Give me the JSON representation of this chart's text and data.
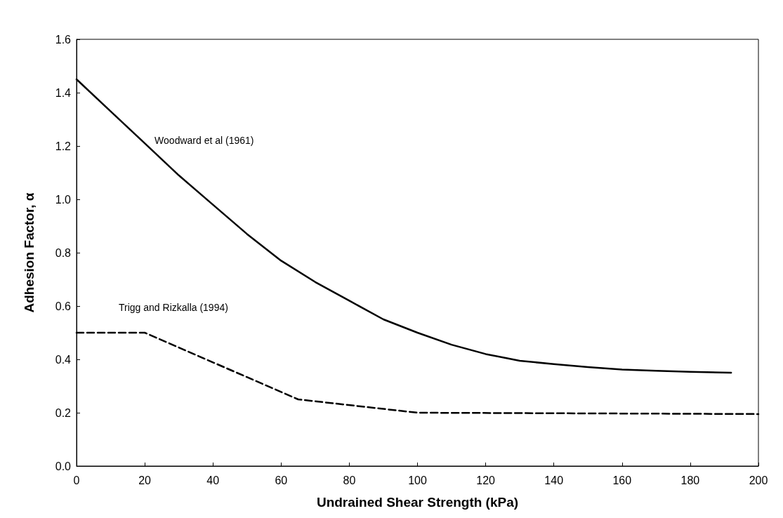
{
  "chart_data": {
    "type": "line",
    "xlabel": "Undrained Shear Strength (kPa)",
    "ylabel": "Adhesion Factor, α",
    "xlim": [
      0,
      200
    ],
    "xticks": [
      0,
      20,
      40,
      60,
      80,
      100,
      120,
      140,
      160,
      180,
      200
    ],
    "ylim": [
      0,
      1.6
    ],
    "yticks": [
      {
        "value": 0,
        "label": "0.0"
      },
      0.2,
      0.4,
      0.6,
      0.8,
      {
        "value": 1,
        "label": "1.0"
      },
      1.2,
      1.4,
      1.6
    ],
    "grid": false,
    "marker": "none",
    "series": [
      {
        "name": "Woodward et al (1961)",
        "color": "#000000",
        "line_style": "solid",
        "x": [
          0,
          10,
          20,
          30,
          40,
          50,
          60,
          70,
          80,
          90,
          100,
          110,
          120,
          130,
          140,
          150,
          160,
          170,
          180,
          192
        ],
        "values": [
          1.45,
          1.33,
          1.21,
          1.09,
          0.98,
          0.87,
          0.77,
          0.69,
          0.62,
          0.55,
          0.5,
          0.455,
          0.42,
          0.395,
          0.382,
          0.371,
          0.362,
          0.357,
          0.353,
          0.35
        ]
      },
      {
        "name": "Trigg and Rizkalla (1994)",
        "color": "#000000",
        "line_style": "dashed",
        "x": [
          0,
          20,
          65,
          100,
          200
        ],
        "values": [
          0.5,
          0.5,
          0.25,
          0.2,
          0.195
        ]
      }
    ]
  }
}
